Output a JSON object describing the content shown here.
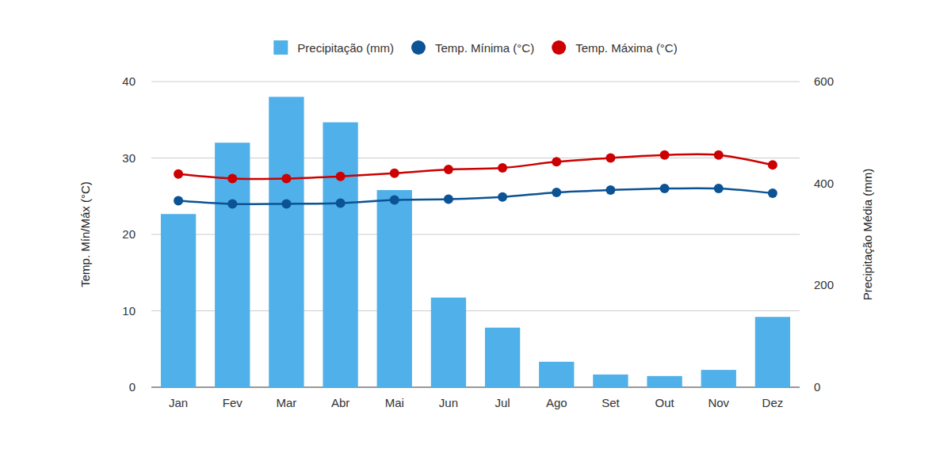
{
  "chart_data": {
    "type": "bar",
    "categories": [
      "Jan",
      "Fev",
      "Mar",
      "Abr",
      "Mai",
      "Jun",
      "Jul",
      "Ago",
      "Set",
      "Out",
      "Nov",
      "Dez"
    ],
    "series": [
      {
        "name": "Precipitação (mm)",
        "type": "bar",
        "axis": "y2",
        "color": "#4fb0ea",
        "values": [
          340,
          480,
          570,
          520,
          387,
          176,
          117,
          50,
          25,
          22,
          34,
          138
        ]
      },
      {
        "name": "Temp. Mínima (°C)",
        "type": "line",
        "color": "#0b5394",
        "marker": "circle",
        "values": [
          24.4,
          24.0,
          24.0,
          24.1,
          24.5,
          24.6,
          24.9,
          25.5,
          25.8,
          26.0,
          26.0,
          25.4
        ]
      },
      {
        "name": "Temp. Máxima (°C)",
        "type": "line",
        "color": "#cc0000",
        "marker": "circle",
        "values": [
          27.9,
          27.3,
          27.3,
          27.6,
          28.0,
          28.5,
          28.7,
          29.5,
          30.0,
          30.4,
          30.4,
          29.1
        ]
      }
    ],
    "ylabel": "Temp. Mín/Máx (°C)",
    "y2label": "Precipitação Média (mm)",
    "ylim": [
      0,
      40
    ],
    "yticks": [
      0,
      10,
      20,
      30,
      40
    ],
    "y2lim": [
      0,
      600
    ],
    "y2ticks": [
      0,
      200,
      400,
      600
    ],
    "grid": true,
    "legend": "top"
  }
}
